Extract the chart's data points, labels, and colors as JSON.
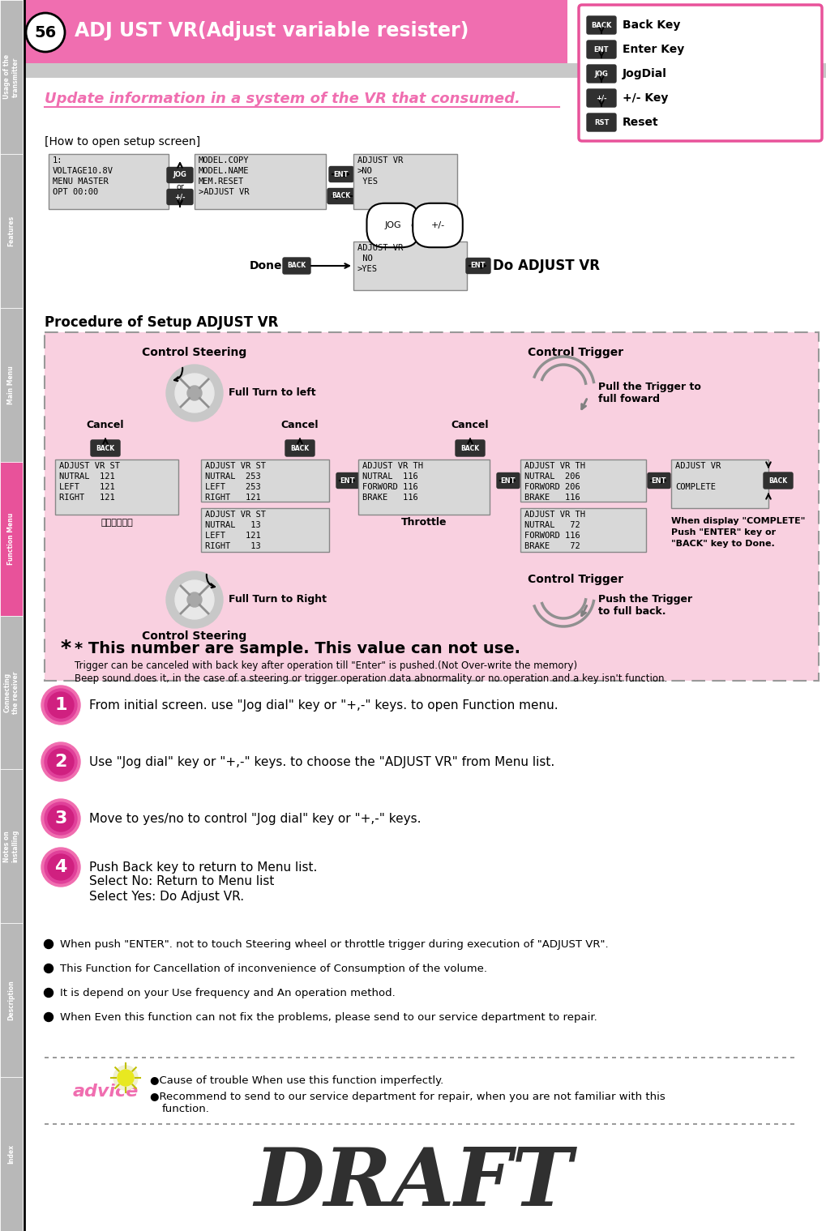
{
  "page_num": "56",
  "title": "ADJ UST VR(Adjust variable resister)",
  "subtitle": "Update information in a system of the VR that consumed.",
  "bg_color": "#ffffff",
  "header_bg": "#f06eb0",
  "header_text_color": "#ffffff",
  "subtitle_color": "#f06eb0",
  "pink_bg": "#f9d0e0",
  "gray_bg": "#d0d0d0",
  "how_to_open": "[How to open setup screen]",
  "procedure_title": "Procedure of Setup ADJUST VR",
  "steps": [
    "From initial screen. use \"Jog dial\" key or \"+,-\" keys. to open Function menu.",
    "Use \"Jog dial\" key or \"+,-\" keys. to choose the \"ADJUST VR\" from Menu list.",
    "Move to yes/no to control \"Jog dial\" key or \"+,-\" keys.",
    "Push Back key to return to Menu list."
  ],
  "step4_extra": [
    "Select No: Return to Menu list",
    "Select Yes: Do Adjust VR."
  ],
  "bullets": [
    "When push \"ENTER\". not to touch Steering wheel or throttle trigger during execution of \"ADJUST VR\".",
    "This Function for Cancellation of inconvenience of Consumption of the volume.",
    "It is depend on your Use frequency and An operation method.",
    "When Even this function can not fix the problems, please send to our service department to repair."
  ],
  "advice_items": [
    "Cause of trouble When use this function imperfectly.",
    "Recommend to send to our service department for repair, when you are not familiar with this",
    "function."
  ],
  "draft_text": "DRAFT",
  "sample_note": "* This number are sample. This value can not use.",
  "note1": "Trigger can be canceled with back key after operation till \"Enter\" is pushed.(Not Over-write the memory)",
  "note2": "Beep sound does it, in the case of a steering or trigger operation data abnormality or no operation and a key isn't function.",
  "tab_labels": [
    "Usage of the\ntransmitter",
    "Features",
    "Main Menu",
    "Function Menu",
    "Connecting\nthe receiver",
    "Notes on\ninstalling",
    "Description",
    "Index"
  ],
  "tab_colors": [
    "#b8b8b8",
    "#b8b8b8",
    "#b8b8b8",
    "#e8529a",
    "#b8b8b8",
    "#b8b8b8",
    "#b8b8b8",
    "#b8b8b8"
  ],
  "key_labels": [
    "Back Key",
    "Enter Key",
    "JogDial",
    "+/- Key",
    "Reset"
  ],
  "key_icons": [
    "BACK",
    "ENT",
    "JOG",
    "+/-",
    "RST"
  ]
}
